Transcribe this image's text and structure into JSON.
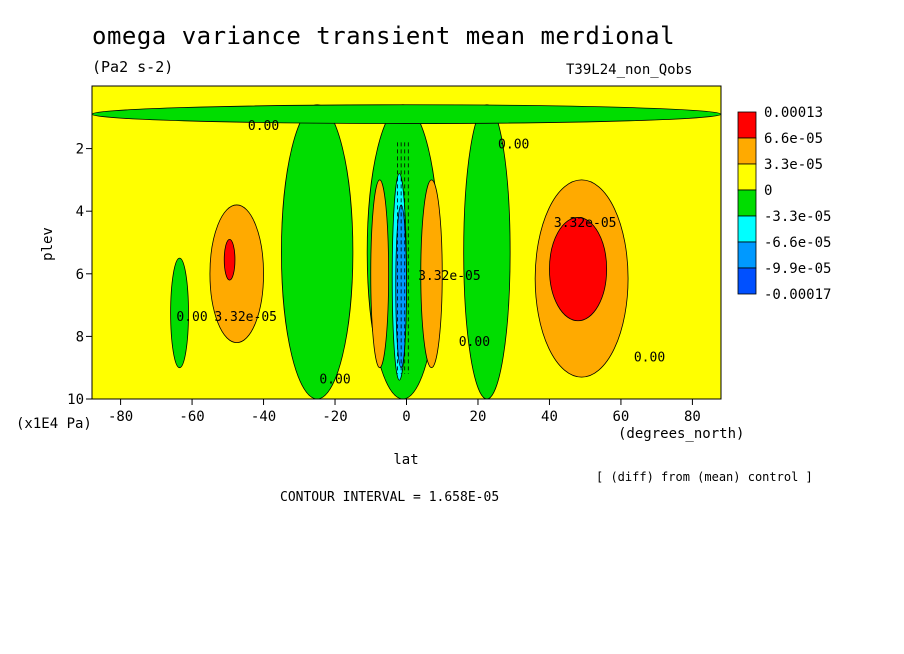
{
  "chart_data": {
    "type": "heatmap",
    "title": "omega variance transient mean merdional",
    "units": "(Pa2 s-2)",
    "run_label": "T39L24_non_Qobs",
    "xlabel": "lat",
    "x_units": "(degrees_north)",
    "ylabel": "plev",
    "y_units": "(x1E4 Pa)",
    "xlim": [
      -88,
      88
    ],
    "ylim": [
      0,
      10
    ],
    "y_inverted": true,
    "x_ticks": [
      -80,
      -60,
      -40,
      -20,
      0,
      20,
      40,
      60,
      80
    ],
    "x_tick_labels": [
      "-80",
      "-60",
      "-40",
      "-20",
      "0",
      "20",
      "40",
      "60",
      "80"
    ],
    "y_ticks": [
      2,
      4,
      6,
      8,
      10
    ],
    "y_tick_labels": [
      "2",
      "4",
      "6",
      "8",
      "10"
    ],
    "legend": {
      "levels": [
        "0.00013",
        "6.6e-05",
        "3.3e-05",
        "0",
        "-3.3e-05",
        "-6.6e-05",
        "-9.9e-05",
        "-0.00017"
      ],
      "colors": [
        "#ff0000",
        "#ffaa00",
        "#ffff00",
        "#00dd00",
        "#00ffff",
        "#0099ff",
        "#0050ff"
      ]
    },
    "regions": [
      {
        "color": "#00dd00",
        "lat": [
          -35,
          -15
        ],
        "plev": [
          0.6,
          10
        ],
        "note": "negative band"
      },
      {
        "color": "#00dd00",
        "lat": [
          -66,
          -61
        ],
        "plev": [
          5.5,
          9
        ],
        "note": "narrow negative"
      },
      {
        "color": "#00dd00",
        "lat": [
          -11,
          9
        ],
        "plev": [
          0.6,
          10
        ],
        "note": "equatorial negative"
      },
      {
        "color": "#00dd00",
        "lat": [
          16,
          29
        ],
        "plev": [
          0.6,
          10
        ],
        "note": "negative band"
      },
      {
        "color": "#00dd00",
        "lat": [
          -88,
          88
        ],
        "plev": [
          0.6,
          1.2
        ],
        "note": "upper negative layer"
      },
      {
        "color": "#00ffff",
        "lat": [
          -4,
          0
        ],
        "plev": [
          2.8,
          9.4
        ],
        "note": "equatorial minimum"
      },
      {
        "color": "#0099ff",
        "lat": [
          -3,
          0
        ],
        "plev": [
          3.8,
          9.0
        ],
        "note": "equatorial minimum"
      },
      {
        "color": "#ffaa00",
        "lat": [
          -55,
          -40
        ],
        "plev": [
          3.8,
          8.2
        ],
        "note": "SH maximum"
      },
      {
        "color": "#ff0000",
        "lat": [
          -51,
          -48
        ],
        "plev": [
          4.9,
          6.2
        ],
        "note": "SH peak"
      },
      {
        "color": "#ffaa00",
        "lat": [
          36,
          62
        ],
        "plev": [
          3.0,
          9.3
        ],
        "note": "NH maximum"
      },
      {
        "color": "#ff0000",
        "lat": [
          40,
          56
        ],
        "plev": [
          4.2,
          7.5
        ],
        "note": "NH peak"
      },
      {
        "color": "#ffaa00",
        "lat": [
          -10,
          -5
        ],
        "plev": [
          3.0,
          9.0
        ],
        "note": "off-equator maximum"
      },
      {
        "color": "#ffaa00",
        "lat": [
          4,
          10
        ],
        "plev": [
          3.0,
          9.0
        ],
        "note": "off-equator maximum"
      }
    ],
    "contour_labels": [
      {
        "text": "0.00",
        "lat": -40,
        "plev": 1.4
      },
      {
        "text": "0.00",
        "lat": 30,
        "plev": 2.0
      },
      {
        "text": "3.32e-05",
        "lat": 50,
        "plev": 4.5
      },
      {
        "text": "3.32e-05",
        "lat": -45,
        "plev": 7.5
      },
      {
        "text": "0.00",
        "lat": -60,
        "plev": 7.5
      },
      {
        "text": "0.00",
        "lat": -20,
        "plev": 9.5
      },
      {
        "text": "0.00",
        "lat": 19,
        "plev": 8.3
      },
      {
        "text": "0.00",
        "lat": 68,
        "plev": 8.8
      },
      {
        "text": "3.32e-05",
        "lat": 12,
        "plev": 6.2
      }
    ],
    "footer_note": "[ (diff) from (mean) control ]",
    "contour_interval": "CONTOUR INTERVAL = 1.658E-05"
  }
}
